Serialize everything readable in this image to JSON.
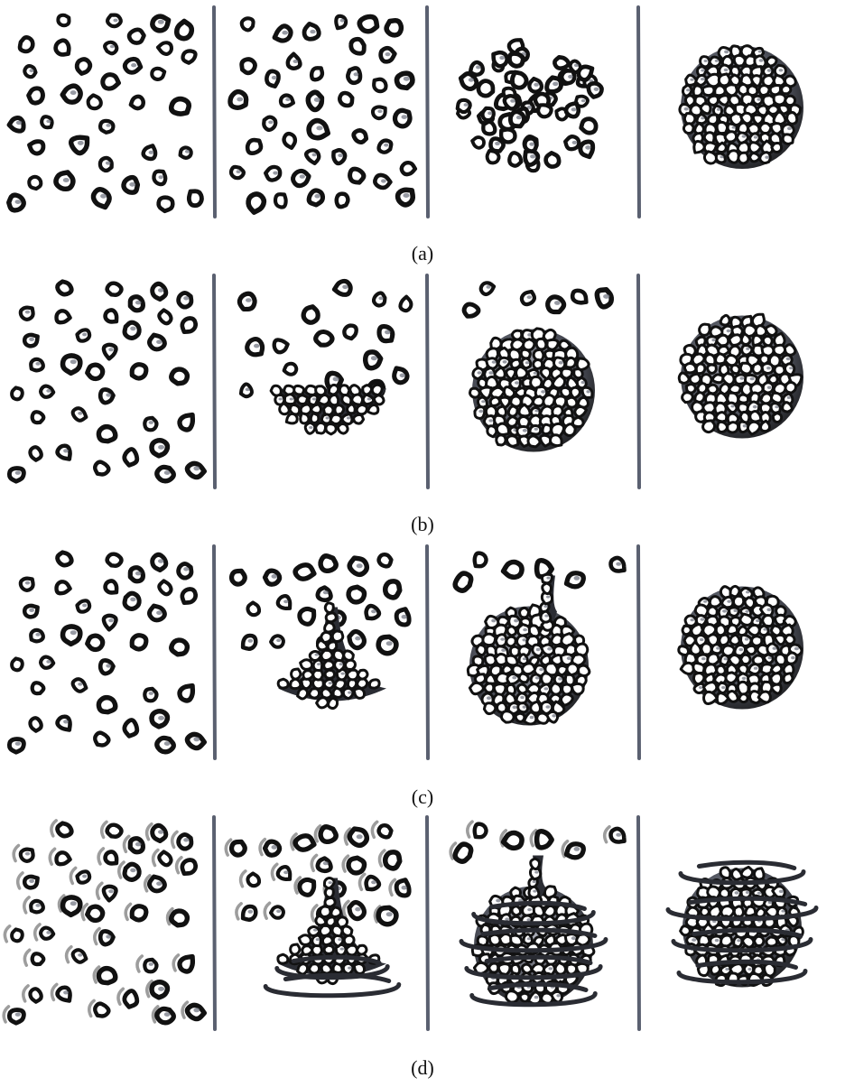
{
  "figure": {
    "rows": [
      {
        "caption": "(a)",
        "name": "row-a"
      },
      {
        "caption": "(b)",
        "name": "row-b"
      },
      {
        "caption": "(c)",
        "name": "row-c"
      },
      {
        "caption": "(d)",
        "name": "row-d"
      }
    ]
  },
  "colors": {
    "particle_stroke": "#111111",
    "particle_fill": "#ffffff",
    "particle_highlight": "#7d818c",
    "divider": "#5a6070",
    "motion_trail": "#8c8c8c",
    "swirl": "#2a2c33"
  }
}
